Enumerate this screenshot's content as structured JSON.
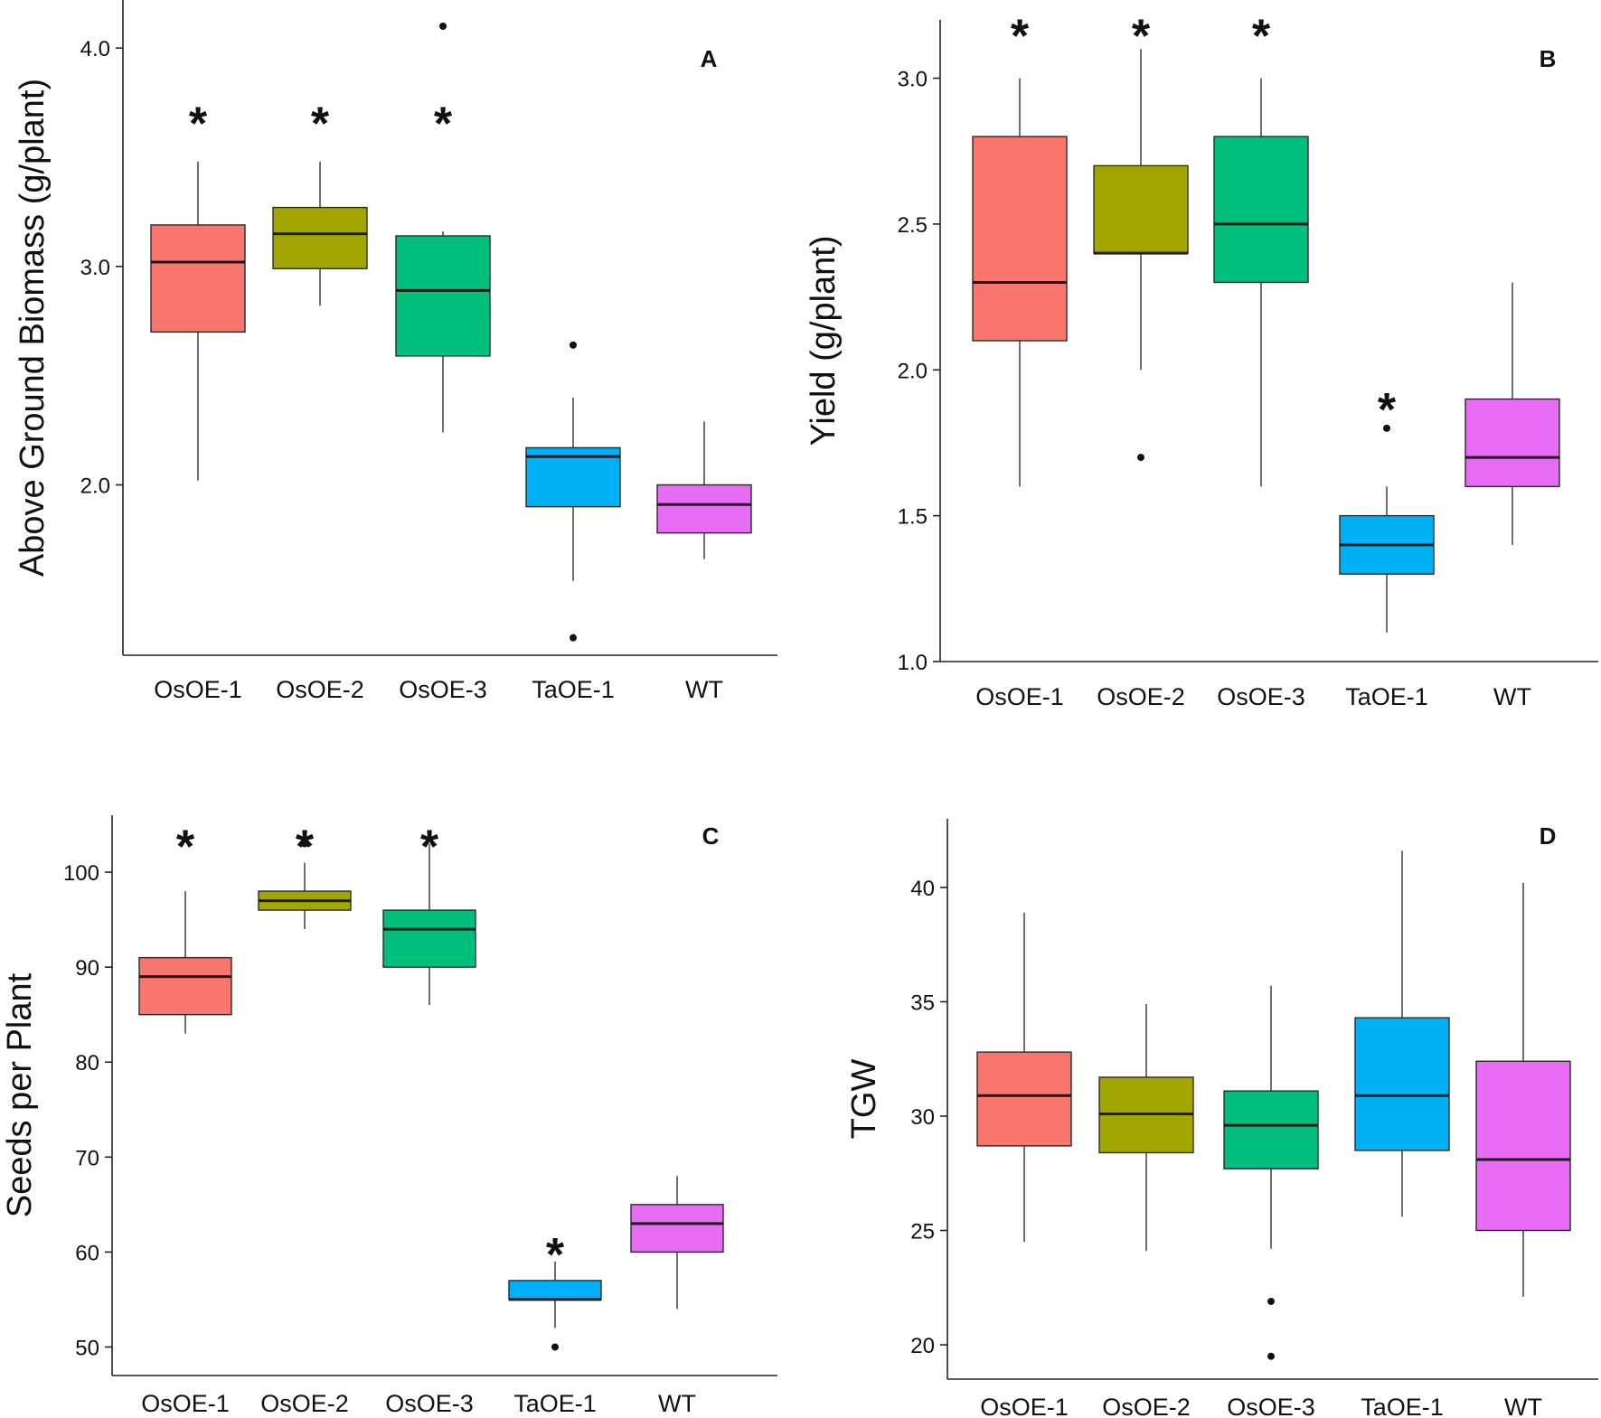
{
  "colors": {
    "OsOE-1": "#f8766d",
    "OsOE-2": "#a3a500",
    "OsOE-3": "#00bf7d",
    "TaOE-1": "#00b0f6",
    "WT": "#e76bf3"
  },
  "chart_data": [
    {
      "type": "box",
      "panel": "A",
      "ylabel": "Above Ground Biomass (g/plant)",
      "ylim": [
        1.22,
        4.22
      ],
      "yticks": [
        2.0,
        3.0,
        4.0
      ],
      "ytick_labels": [
        "2.0",
        "3.0",
        "4.0"
      ],
      "categories": [
        "OsOE-1",
        "OsOE-2",
        "OsOE-3",
        "TaOE-1",
        "WT"
      ],
      "boxes": [
        {
          "min": 2.02,
          "q1": 2.7,
          "median": 3.02,
          "q3": 3.19,
          "max": 3.48,
          "outliers": [],
          "significant": true
        },
        {
          "min": 2.82,
          "q1": 2.99,
          "median": 3.15,
          "q3": 3.27,
          "max": 3.48,
          "outliers": [],
          "significant": true
        },
        {
          "min": 2.24,
          "q1": 2.59,
          "median": 2.89,
          "q3": 3.14,
          "max": 3.16,
          "outliers": [
            4.1
          ],
          "significant": true
        },
        {
          "min": 1.56,
          "q1": 1.9,
          "median": 2.13,
          "q3": 2.17,
          "max": 2.4,
          "outliers": [
            2.64,
            1.3
          ],
          "significant": false
        },
        {
          "min": 1.66,
          "q1": 1.78,
          "median": 1.91,
          "q3": 2.0,
          "max": 2.29,
          "outliers": [],
          "significant": false
        }
      ],
      "significance_marker": "*"
    },
    {
      "type": "box",
      "panel": "B",
      "ylabel": "Yield (g/plant)",
      "ylim": [
        1.0,
        3.2
      ],
      "yticks": [
        1.0,
        1.5,
        2.0,
        2.5,
        3.0
      ],
      "ytick_labels": [
        "1.0",
        "1.5",
        "2.0",
        "2.5",
        "3.0"
      ],
      "categories": [
        "OsOE-1",
        "OsOE-2",
        "OsOE-3",
        "TaOE-1",
        "WT"
      ],
      "boxes": [
        {
          "min": 1.6,
          "q1": 2.1,
          "median": 2.3,
          "q3": 2.8,
          "max": 3.0,
          "outliers": [],
          "significant": true
        },
        {
          "min": 2.0,
          "q1": 2.4,
          "median": 2.4,
          "q3": 2.7,
          "max": 3.1,
          "outliers": [
            1.7
          ],
          "significant": true
        },
        {
          "min": 1.6,
          "q1": 2.3,
          "median": 2.5,
          "q3": 2.8,
          "max": 3.0,
          "outliers": [],
          "significant": true
        },
        {
          "min": 1.1,
          "q1": 1.3,
          "median": 1.4,
          "q3": 1.5,
          "max": 1.6,
          "outliers": [
            1.8
          ],
          "significant": true
        },
        {
          "min": 1.4,
          "q1": 1.6,
          "median": 1.7,
          "q3": 1.9,
          "max": 2.3,
          "outliers": [],
          "significant": false
        }
      ],
      "significance_marker": "*"
    },
    {
      "type": "box",
      "panel": "C",
      "ylabel": "Seeds per Plant",
      "ylim": [
        47,
        106
      ],
      "yticks": [
        50,
        60,
        70,
        80,
        90,
        100
      ],
      "ytick_labels": [
        "50",
        "60",
        "70",
        "80",
        "90",
        "100"
      ],
      "categories": [
        "OsOE-1",
        "OsOE-2",
        "OsOE-3",
        "TaOE-1",
        "WT"
      ],
      "boxes": [
        {
          "min": 83,
          "q1": 85,
          "median": 89,
          "q3": 91,
          "max": 98,
          "outliers": [],
          "significant": true
        },
        {
          "min": 94,
          "q1": 96,
          "median": 97,
          "q3": 98,
          "max": 101,
          "outliers": [
            103
          ],
          "significant": true
        },
        {
          "min": 86,
          "q1": 90,
          "median": 94,
          "q3": 96,
          "max": 103,
          "outliers": [],
          "significant": true
        },
        {
          "min": 52,
          "q1": 55,
          "median": 55,
          "q3": 57,
          "max": 59,
          "outliers": [
            50
          ],
          "significant": true
        },
        {
          "min": 54,
          "q1": 60,
          "median": 63,
          "q3": 65,
          "max": 68,
          "outliers": [],
          "significant": false
        }
      ],
      "significance_marker": "*"
    },
    {
      "type": "box",
      "panel": "D",
      "ylabel": "TGW",
      "ylim": [
        18.5,
        43
      ],
      "yticks": [
        20,
        25,
        30,
        35,
        40
      ],
      "ytick_labels": [
        "20",
        "25",
        "30",
        "35",
        "40"
      ],
      "categories": [
        "OsOE-1",
        "OsOE-2",
        "OsOE-3",
        "TaOE-1",
        "WT"
      ],
      "boxes": [
        {
          "min": 24.5,
          "q1": 28.7,
          "median": 30.9,
          "q3": 32.8,
          "max": 38.9,
          "outliers": [],
          "significant": false
        },
        {
          "min": 24.1,
          "q1": 28.4,
          "median": 30.1,
          "q3": 31.7,
          "max": 34.9,
          "outliers": [],
          "significant": false
        },
        {
          "min": 24.2,
          "q1": 27.7,
          "median": 29.6,
          "q3": 31.1,
          "max": 35.7,
          "outliers": [
            21.9,
            19.5
          ],
          "significant": false
        },
        {
          "min": 25.6,
          "q1": 28.5,
          "median": 30.9,
          "q3": 34.3,
          "max": 41.6,
          "outliers": [],
          "significant": false
        },
        {
          "min": 22.1,
          "q1": 25.0,
          "median": 28.1,
          "q3": 32.4,
          "max": 40.2,
          "outliers": [],
          "significant": false
        }
      ],
      "significance_marker": "*"
    }
  ]
}
